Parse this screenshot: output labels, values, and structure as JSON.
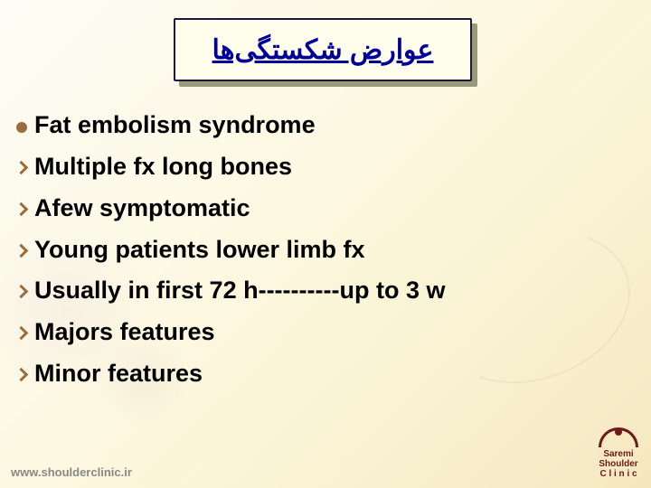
{
  "slide": {
    "title": "عوارض شکستگی‌ها",
    "title_color": "#000099",
    "title_box_bg": "#fffdec",
    "title_box_border": "#1a1a3a",
    "title_fontsize": 30,
    "bullet_color": "#9c6d3c",
    "text_color": "#000000",
    "text_fontsize": 27,
    "background_gradient": [
      "#fdfcf5",
      "#fdfae8",
      "#fbf5d8",
      "#f5e8c0"
    ],
    "lines": [
      {
        "bullet": "dot",
        "text": "Fat embolism syndrome"
      },
      {
        "bullet": "chevron",
        "text": "Multiple fx     long bones"
      },
      {
        "bullet": "chevron",
        "text": "Afew symptomatic"
      },
      {
        "bullet": "chevron",
        "text": "Young patients    lower limb fx"
      },
      {
        "bullet": "chevron",
        "text": "Usually in first 72 h----------up to 3 w"
      },
      {
        "bullet": "chevron",
        "text": "Majors features"
      },
      {
        "bullet": "chevron",
        "text": "Minor features"
      }
    ]
  },
  "footer": {
    "url": "www.shoulderclinic.ir",
    "logo_line1": "Saremi",
    "logo_line2": "Shoulder",
    "logo_line3": "C l i n i c",
    "logo_color": "#6c1a1a"
  }
}
